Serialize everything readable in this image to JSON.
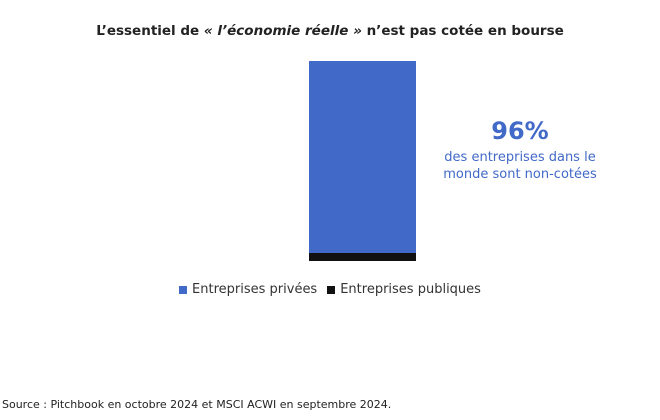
{
  "title": {
    "prefix": "L’essentiel de ",
    "emphasis": "« l’économie réelle »",
    "suffix": " n’est pas cotée en bourse"
  },
  "callout": {
    "value": "96%",
    "text_line1": "des entreprises dans le",
    "text_line2": "monde sont non-cotées"
  },
  "source": "Source : Pitchbook en octobre 2024 et MSCI ACWI en septembre 2024.",
  "chart_data": {
    "type": "bar",
    "stacked": true,
    "categories": [
      ""
    ],
    "series": [
      {
        "name": "Entreprises privées",
        "values": [
          96
        ],
        "color": "#4169c8"
      },
      {
        "name": "Entreprises publiques",
        "values": [
          4
        ],
        "color": "#111111"
      }
    ],
    "ylim": [
      0,
      100
    ],
    "grid": false,
    "legend": "bottom-center"
  }
}
